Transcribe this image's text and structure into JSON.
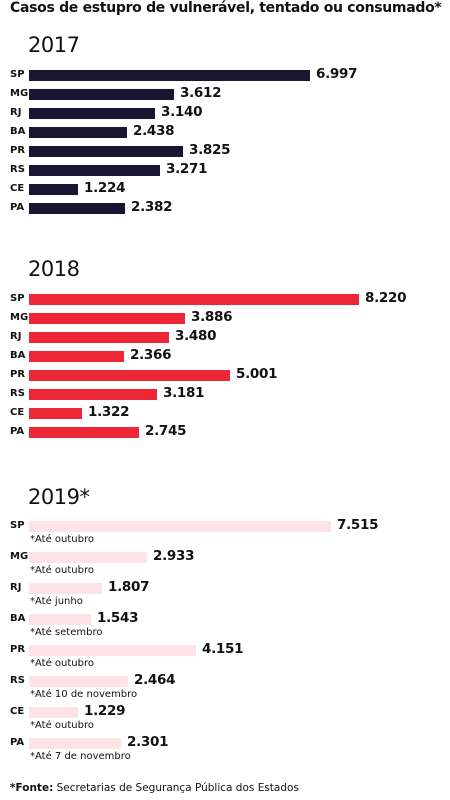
{
  "title": "Casos de estupro de vulnerável, tentado ou consumado*",
  "footer": {
    "label": "*Fonte:",
    "text": "Secretarias de Segurança Pública dos Estados"
  },
  "colors": {
    "y2017": "#1a1533",
    "y2018": "#ee2737",
    "y2019": "#fde3e6"
  },
  "chart_data": [
    {
      "type": "bar",
      "title": "2017",
      "categories": [
        "SP",
        "MG",
        "RJ",
        "BA",
        "PR",
        "RS",
        "CE",
        "PA"
      ],
      "values": [
        6997,
        3612,
        3140,
        2438,
        3825,
        3271,
        1224,
        2382
      ],
      "labels": [
        "6.997",
        "3.612",
        "3.140",
        "2.438",
        "3.825",
        "3.271",
        "1.224",
        "2.382"
      ]
    },
    {
      "type": "bar",
      "title": "2018",
      "categories": [
        "SP",
        "MG",
        "RJ",
        "BA",
        "PR",
        "RS",
        "CE",
        "PA"
      ],
      "values": [
        8220,
        3886,
        3480,
        2366,
        5001,
        3181,
        1322,
        2745
      ],
      "labels": [
        "8.220",
        "3.886",
        "3.480",
        "2.366",
        "5.001",
        "3.181",
        "1.322",
        "2.745"
      ]
    },
    {
      "type": "bar",
      "title": "2019*",
      "categories": [
        "SP",
        "MG",
        "RJ",
        "BA",
        "PR",
        "RS",
        "CE",
        "PA"
      ],
      "values": [
        7515,
        2933,
        1807,
        1543,
        4151,
        2464,
        1229,
        2301
      ],
      "labels": [
        "7.515",
        "2.933",
        "1.807",
        "1.543",
        "4.151",
        "2.464",
        "1.229",
        "2.301"
      ],
      "notes": [
        "*Até outubro",
        "*Até outubro",
        "*Até junho",
        "*Até setembro",
        "*Até outubro",
        "*Até 10 de novembro",
        "*Até outubro",
        "*Até 7 de novembro"
      ]
    }
  ]
}
